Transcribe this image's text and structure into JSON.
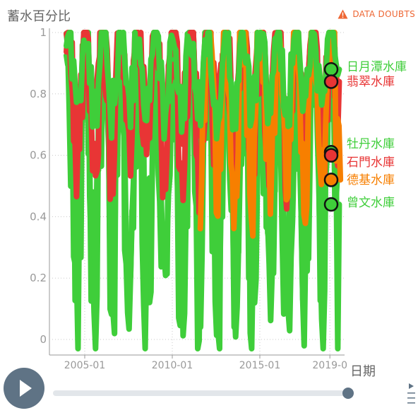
{
  "header": {
    "y_axis_label": "蓄水百分比",
    "doubts_label": "DATA DOUBTS",
    "doubts_icon": "warning-icon"
  },
  "x_axis_label": "日期",
  "controls": {
    "play_icon": "play-icon",
    "menu_icon": "menu-icon"
  },
  "colors": {
    "green": "#3fce3a",
    "red": "#e83535",
    "orange": "#f77f00",
    "grid": "#c8c8c8",
    "axis_text": "#999999"
  },
  "chart_data": {
    "type": "line",
    "xlabel": "日期",
    "ylabel": "蓄水百分比",
    "x_ticks": [
      "2005-01",
      "2010-01",
      "2015-01",
      "2019-0"
    ],
    "y_ticks": [
      0,
      0.2,
      0.4,
      0.6,
      0.8,
      1
    ],
    "xlim": [
      "2003-11",
      "2019-09"
    ],
    "ylim": [
      -0.04,
      1.02
    ],
    "grid": true,
    "legend_placement": "right, at line ends",
    "series": [
      {
        "name": "日月潭水庫",
        "color": "#3fce3a",
        "end_value": 0.88
      },
      {
        "name": "翡翠水庫",
        "color": "#e83535",
        "end_value": 0.84
      },
      {
        "name": "牡丹水庫",
        "color": "#3fce3a",
        "end_value": 0.61
      },
      {
        "name": "石門水庫",
        "color": "#e83535",
        "end_value": 0.6
      },
      {
        "name": "德基水庫",
        "color": "#f77f00",
        "end_value": 0.52
      },
      {
        "name": "曾文水庫",
        "color": "#3fce3a",
        "end_value": 0.44
      }
    ]
  }
}
